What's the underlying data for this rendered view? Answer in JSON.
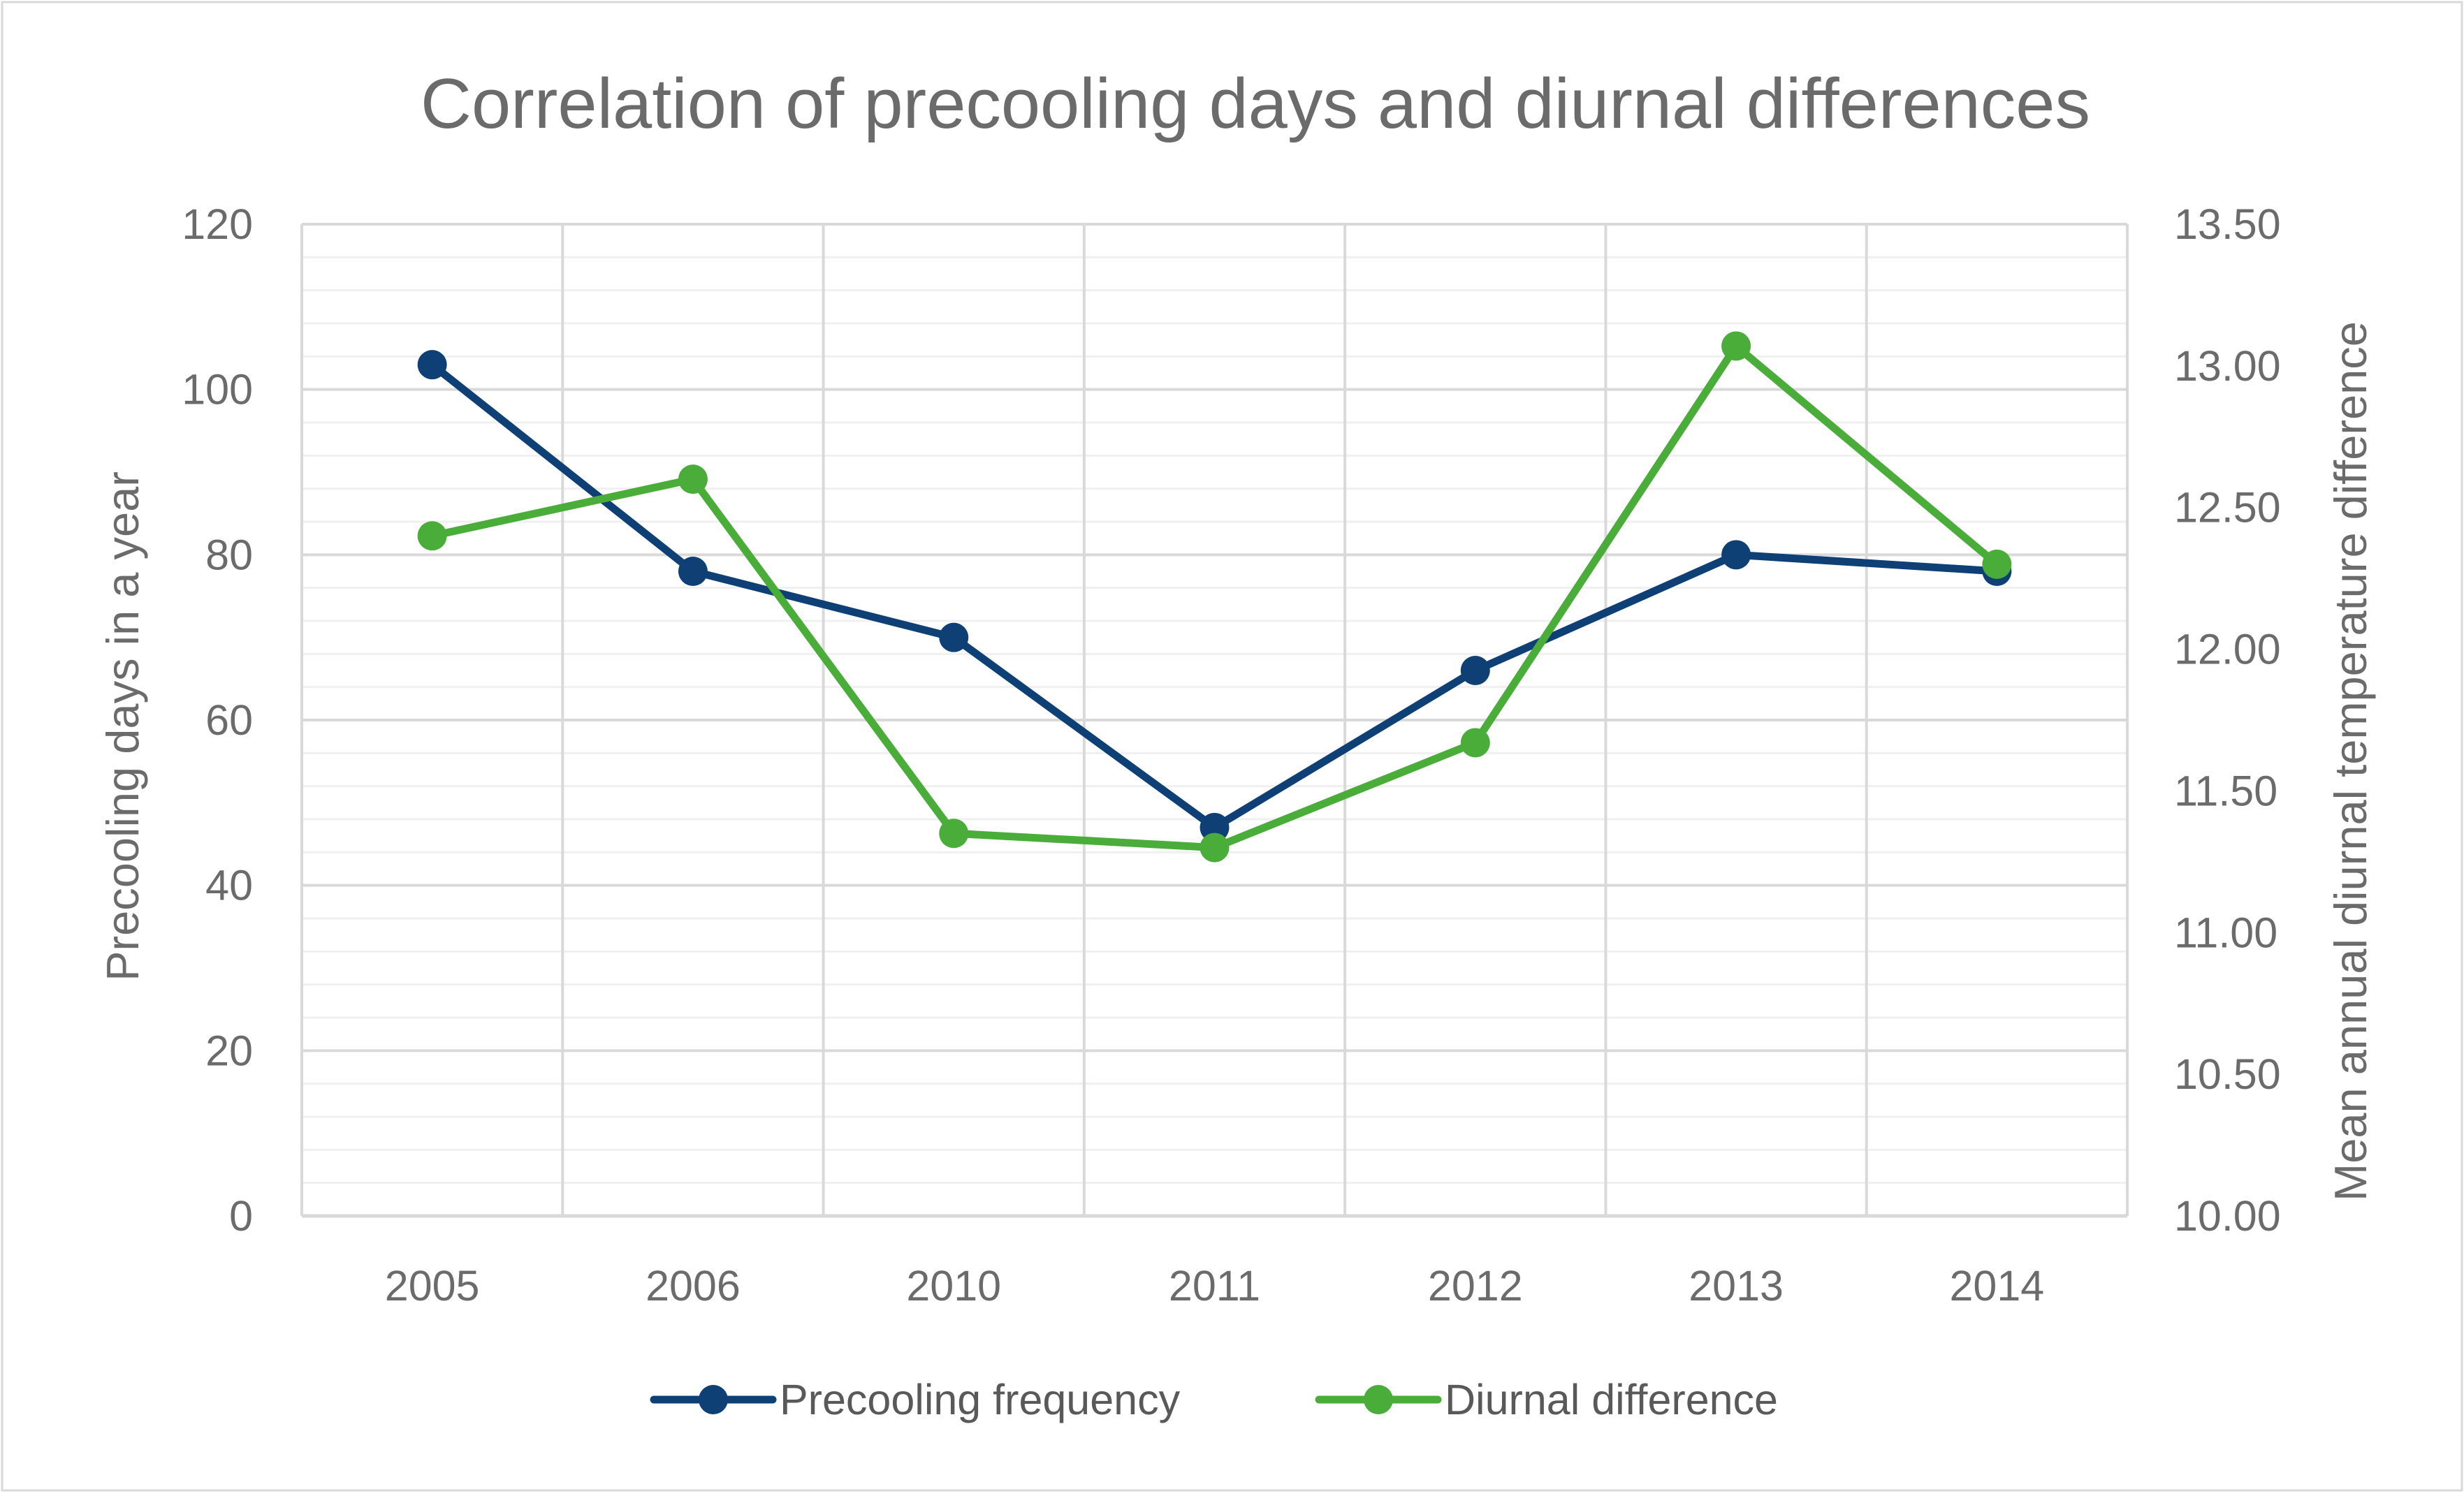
{
  "chart_data": {
    "type": "line",
    "title": "Correlation of precooling days and diurnal differences",
    "categories": [
      "2005",
      "2006",
      "2010",
      "2011",
      "2012",
      "2013",
      "2014"
    ],
    "series": [
      {
        "name": "Precooling frequency",
        "axis": "left",
        "color": "#0e3f75",
        "values": [
          103,
          78,
          70,
          47,
          66,
          80,
          78
        ]
      },
      {
        "name": "Diurnal difference",
        "axis": "right",
        "color": "#4aad3a",
        "values": [
          12.4,
          12.6,
          11.35,
          11.3,
          11.67,
          13.07,
          12.3
        ]
      }
    ],
    "ylabel": "Precooling days in a year",
    "ylabel_right": "Mean annual diurnal temperature difference",
    "ylim": [
      0,
      120
    ],
    "ylim_right": [
      10,
      13.5
    ],
    "yticks": [
      "0",
      "20",
      "40",
      "60",
      "80",
      "100",
      "120"
    ],
    "yticks_right": [
      "10.00",
      "10.50",
      "11.00",
      "11.50",
      "12.00",
      "12.50",
      "13.00",
      "13.50"
    ],
    "grid": true,
    "legend": "bottom"
  }
}
